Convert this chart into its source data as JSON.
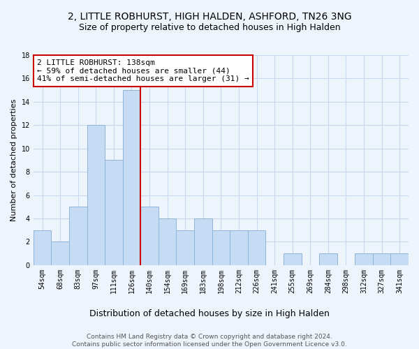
{
  "title": "2, LITTLE ROBHURST, HIGH HALDEN, ASHFORD, TN26 3NG",
  "subtitle": "Size of property relative to detached houses in High Halden",
  "xlabel": "Distribution of detached houses by size in High Halden",
  "ylabel": "Number of detached properties",
  "bin_labels": [
    "54sqm",
    "68sqm",
    "83sqm",
    "97sqm",
    "111sqm",
    "126sqm",
    "140sqm",
    "154sqm",
    "169sqm",
    "183sqm",
    "198sqm",
    "212sqm",
    "226sqm",
    "241sqm",
    "255sqm",
    "269sqm",
    "284sqm",
    "298sqm",
    "312sqm",
    "327sqm",
    "341sqm"
  ],
  "bar_values": [
    3,
    2,
    5,
    12,
    9,
    15,
    5,
    4,
    3,
    4,
    3,
    3,
    3,
    0,
    1,
    0,
    1,
    0,
    1,
    1,
    1
  ],
  "bar_color": "#c6dcf5",
  "bar_edge_color": "#8eb4d8",
  "vline_color": "#cc0000",
  "vline_x": 5.5,
  "annotation_line1": "2 LITTLE ROBHURST: 138sqm",
  "annotation_line2": "← 59% of detached houses are smaller (44)",
  "annotation_line3": "41% of semi-detached houses are larger (31) →",
  "annotation_box_color": "#ffffff",
  "annotation_box_edge": "#cc0000",
  "footer_line1": "Contains HM Land Registry data © Crown copyright and database right 2024.",
  "footer_line2": "Contains public sector information licensed under the Open Government Licence v3.0.",
  "ylim": [
    0,
    18
  ],
  "yticks": [
    0,
    2,
    4,
    6,
    8,
    10,
    12,
    14,
    16,
    18
  ],
  "background_color": "#eef4fc",
  "grid_color": "#c8d8ec",
  "title_fontsize": 10,
  "subtitle_fontsize": 9,
  "xlabel_fontsize": 9,
  "ylabel_fontsize": 8,
  "tick_fontsize": 7,
  "annotation_fontsize": 8,
  "footer_fontsize": 6.5
}
